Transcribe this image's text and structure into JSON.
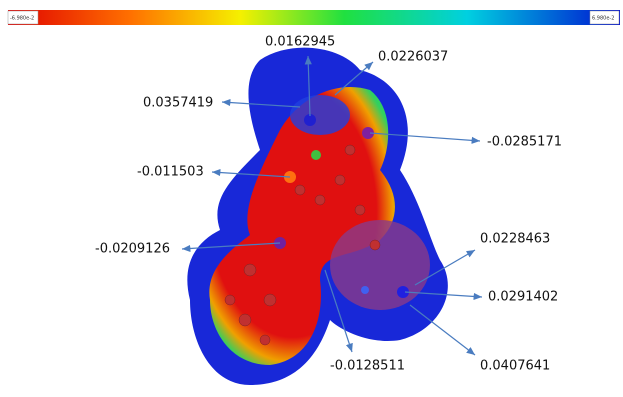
{
  "colorbar": {
    "min_label": "-6.980e-2",
    "max_label": "6.980e-2"
  },
  "labels": [
    {
      "text": "0.0162945"
    },
    {
      "text": "0.0226037"
    },
    {
      "text": "0.0357419"
    },
    {
      "text": "-0.0285171"
    },
    {
      "text": "-0.011503"
    },
    {
      "text": "-0.0209126"
    },
    {
      "text": "0.0228463"
    },
    {
      "text": "0.0291402"
    },
    {
      "text": "-0.0128511"
    },
    {
      "text": "0.0407641"
    }
  ]
}
